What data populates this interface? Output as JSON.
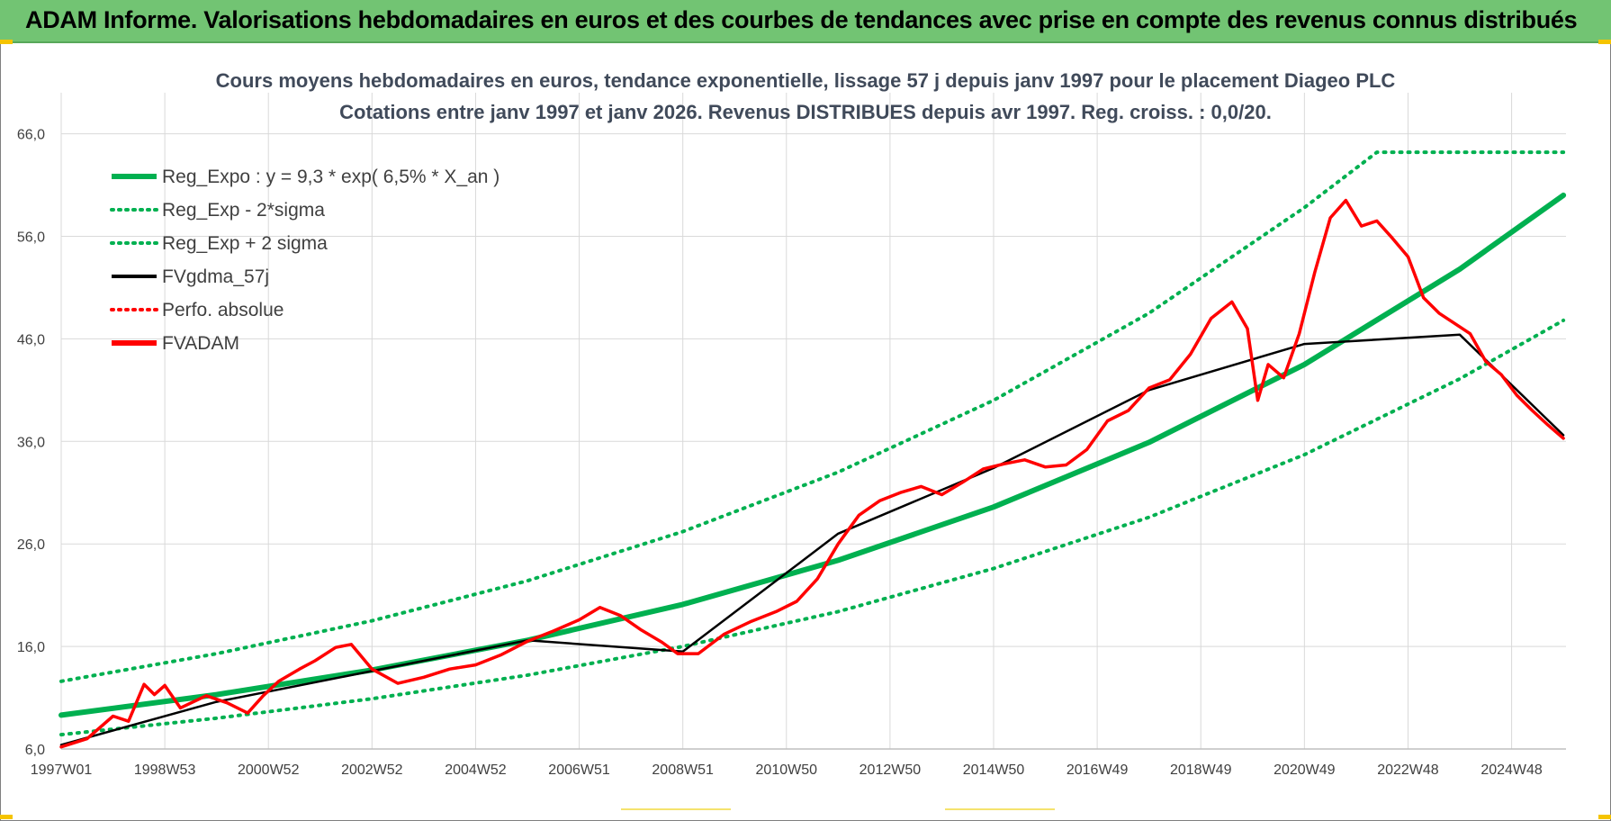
{
  "header": {
    "title": "ADAM Informe. Valorisations hebdomadaires en euros et des courbes de tendances avec prise en compte des revenus connus distribués"
  },
  "colors": {
    "banner": "#72c473",
    "reg_green": "#00b050",
    "price_red": "#ff0000",
    "smooth_black": "#000000",
    "grid": "#d9d9d9"
  },
  "chart_data": {
    "type": "line",
    "title": "Cours moyens hebdomadaires en euros, tendance exponentielle, lissage 57 j depuis janv 1997  pour le placement Diageo PLC",
    "subtitle": "Cotations entre janv 1997 et janv 2026. Revenus DISTRIBUES depuis avr 1997. Reg. croiss. : 0,0/20.",
    "xlabel": "",
    "ylabel": "",
    "x_range": [
      1997.0,
      2026.05
    ],
    "ylim": [
      6,
      70
    ],
    "y_ticks": [
      6,
      16,
      26,
      36,
      46,
      56,
      66
    ],
    "y_tick_labels": [
      "6,0",
      "16,0",
      "26,0",
      "36,0",
      "46,0",
      "56,0",
      "66,0"
    ],
    "x_ticks": [
      1997.0,
      1999.0,
      2001.0,
      2003.0,
      2005.0,
      2007.0,
      2009.0,
      2011.0,
      2013.0,
      2015.0,
      2017.0,
      2019.0,
      2021.0,
      2023.0,
      2025.0
    ],
    "x_tick_labels": [
      "1997W01",
      "1998W53",
      "2000W52",
      "2002W52",
      "2004W52",
      "2006W51",
      "2008W51",
      "2010W50",
      "2012W50",
      "2014W50",
      "2016W49",
      "2018W49",
      "2020W49",
      "2022W48",
      "2024W48"
    ],
    "grid": true,
    "legend_position": "top-left",
    "legend": [
      {
        "label": "Reg_Expo : y = 9,3 * exp( 6,5% *  X_an )",
        "color": "#00b050",
        "style": "solid-thick"
      },
      {
        "label": "Reg_Exp - 2*sigma",
        "color": "#00b050",
        "style": "dotted"
      },
      {
        "label": "Reg_Exp + 2 sigma",
        "color": "#00b050",
        "style": "dotted"
      },
      {
        "label": "FVgdma_57j",
        "color": "#000000",
        "style": "solid"
      },
      {
        "label": "Perfo. absolue",
        "color": "#ff0000",
        "style": "dotted"
      },
      {
        "label": "FVADAM",
        "color": "#ff0000",
        "style": "solid-thick"
      }
    ],
    "series": [
      {
        "name": "Reg_Expo",
        "formula": "y = 9,3 * exp(0.065 * X_an)",
        "x": [
          1997.0,
          2000.0,
          2003.0,
          2006.0,
          2009.0,
          2012.0,
          2015.0,
          2018.0,
          2021.0,
          2024.0,
          2026.0
        ],
        "values": [
          9.3,
          11.3,
          13.7,
          16.6,
          20.1,
          24.4,
          29.6,
          35.9,
          43.5,
          52.8,
          60.0
        ]
      },
      {
        "name": "Reg_Exp - 2*sigma",
        "x": [
          1997.0,
          2000.0,
          2003.0,
          2006.0,
          2009.0,
          2012.0,
          2015.0,
          2018.0,
          2021.0,
          2024.0,
          2026.0
        ],
        "values": [
          7.4,
          9.0,
          10.9,
          13.2,
          16.0,
          19.4,
          23.6,
          28.6,
          34.7,
          42.1,
          47.8
        ]
      },
      {
        "name": "Reg_Exp + 2 sigma",
        "x": [
          1997.0,
          2000.0,
          2003.0,
          2006.0,
          2009.0,
          2012.0,
          2015.0,
          2018.0,
          2021.0,
          2022.4,
          2026.0
        ],
        "values": [
          12.6,
          15.3,
          18.5,
          22.4,
          27.2,
          33.0,
          40.0,
          48.5,
          58.8,
          64.2,
          64.2
        ]
      },
      {
        "name": "FVADAM",
        "x": [
          1997.0,
          1997.5,
          1998.0,
          1998.3,
          1998.6,
          1998.8,
          1999.0,
          1999.3,
          1999.8,
          2000.2,
          2000.6,
          2000.9,
          2001.2,
          2001.6,
          2001.9,
          2002.3,
          2002.6,
          2003.0,
          2003.5,
          2004.0,
          2004.5,
          2005.0,
          2005.5,
          2006.0,
          2006.5,
          2007.0,
          2007.4,
          2007.8,
          2008.2,
          2008.6,
          2008.9,
          2009.3,
          2009.8,
          2010.3,
          2010.8,
          2011.2,
          2011.6,
          2012.0,
          2012.4,
          2012.8,
          2013.2,
          2013.6,
          2014.0,
          2014.4,
          2014.8,
          2015.2,
          2015.6,
          2016.0,
          2016.4,
          2016.8,
          2017.2,
          2017.6,
          2018.0,
          2018.4,
          2018.8,
          2019.2,
          2019.6,
          2019.9,
          2020.1,
          2020.3,
          2020.6,
          2020.9,
          2021.2,
          2021.5,
          2021.8,
          2022.1,
          2022.4,
          2022.7,
          2023.0,
          2023.3,
          2023.6,
          2023.9,
          2024.2,
          2024.5,
          2024.8,
          2025.1,
          2025.4,
          2025.7,
          2026.0
        ],
        "values": [
          6.2,
          7.0,
          9.2,
          8.7,
          12.3,
          11.3,
          12.2,
          10.0,
          11.2,
          10.5,
          9.5,
          11.2,
          12.6,
          13.8,
          14.6,
          15.9,
          16.2,
          13.8,
          12.4,
          13.0,
          13.8,
          14.2,
          15.2,
          16.5,
          17.5,
          18.6,
          19.8,
          19.0,
          17.6,
          16.4,
          15.3,
          15.3,
          17.2,
          18.4,
          19.4,
          20.4,
          22.6,
          26.0,
          28.8,
          30.2,
          31.0,
          31.6,
          30.8,
          32.0,
          33.3,
          33.8,
          34.2,
          33.5,
          33.7,
          35.2,
          38.0,
          39.0,
          41.2,
          42.0,
          44.5,
          48.0,
          49.6,
          47.0,
          40.0,
          43.5,
          42.2,
          46.5,
          52.5,
          57.8,
          59.5,
          57.0,
          57.5,
          55.8,
          54.0,
          50.0,
          48.5,
          47.5,
          46.5,
          43.8,
          42.5,
          40.5,
          39.0,
          37.6,
          36.3
        ]
      },
      {
        "name": "FVgdma_57j",
        "note": "smoothed curve following FVADAM",
        "x": [
          1997.0,
          2000.0,
          2003.0,
          2006.0,
          2009.0,
          2012.0,
          2015.0,
          2018.0,
          2021.0,
          2024.0,
          2026.0
        ],
        "values": [
          6.4,
          10.6,
          13.6,
          16.6,
          15.5,
          27.0,
          33.4,
          41.0,
          45.5,
          46.4,
          36.6
        ]
      }
    ]
  }
}
